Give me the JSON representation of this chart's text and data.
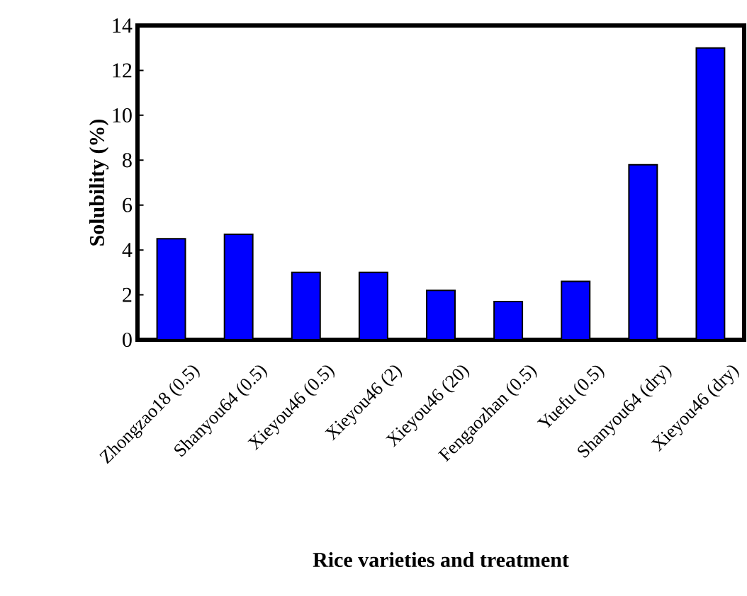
{
  "chart_data": {
    "type": "bar",
    "xlabel": "Rice varieties and treatment",
    "ylabel": "Solubility (%)",
    "categories": [
      "Zhongzao18 (0.5)",
      "Shanyou64 (0.5)",
      "Xieyou46 (0.5)",
      "Xieyou46 (2)",
      "Xieyou46 (20)",
      "Fengaozhan (0.5)",
      "Yuefu (0.5)",
      "Shanyou64 (dry)",
      "Xieyou46 (dry)"
    ],
    "values": [
      4.5,
      4.7,
      3.0,
      3.0,
      2.2,
      1.7,
      2.6,
      7.8,
      13.0
    ],
    "color": "#0000ff",
    "ylim": [
      0,
      14
    ],
    "yticks": [
      0,
      2,
      4,
      6,
      8,
      10,
      12,
      14
    ],
    "grid": false
  }
}
